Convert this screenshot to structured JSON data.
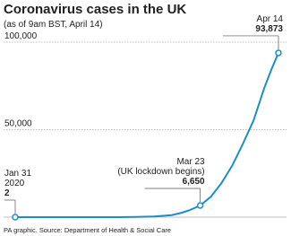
{
  "chart_data": {
    "type": "line",
    "title": "Coronavirus cases in the UK",
    "subtitle": "(as of 9am BST, April 14)",
    "source": "PA graphic. Source: Department of Health & Social Care",
    "x": [
      "2020-01-31",
      "2020-02-10",
      "2020-02-20",
      "2020-02-29",
      "2020-03-05",
      "2020-03-10",
      "2020-03-15",
      "2020-03-18",
      "2020-03-20",
      "2020-03-23",
      "2020-03-26",
      "2020-03-29",
      "2020-04-01",
      "2020-04-04",
      "2020-04-07",
      "2020-04-10",
      "2020-04-12",
      "2020-04-14"
    ],
    "values": [
      2,
      8,
      9,
      23,
      115,
      373,
      1140,
      2626,
      3983,
      6650,
      11658,
      19522,
      29474,
      41903,
      55242,
      73758,
      84279,
      93873
    ],
    "value_labels": [
      "2",
      null,
      null,
      null,
      null,
      null,
      null,
      null,
      null,
      "6,650",
      null,
      null,
      null,
      null,
      null,
      null,
      null,
      "93,873"
    ],
    "point_labels": [
      [
        "Jan 31",
        "2020"
      ],
      null,
      null,
      null,
      null,
      null,
      null,
      null,
      null,
      [
        "Mar 23",
        "(UK lockdown begins)"
      ],
      null,
      null,
      null,
      null,
      null,
      null,
      null,
      [
        "Apr 14"
      ]
    ],
    "color": "#1a8fc6",
    "ylim": [
      0,
      100000
    ],
    "yticks": [
      {
        "value": 50000,
        "label": "50,000"
      },
      {
        "value": 100000,
        "label": "100,000"
      }
    ],
    "grid": true
  }
}
